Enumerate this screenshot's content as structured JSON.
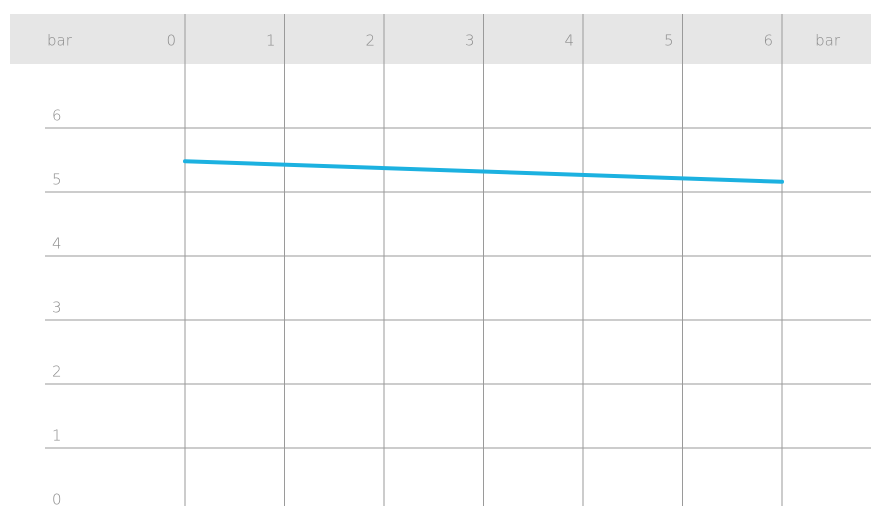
{
  "chart_data": {
    "type": "line",
    "ylabel": "bar",
    "xlabel": "bar",
    "x": [
      0,
      6
    ],
    "series": [
      {
        "name": null,
        "color": "#1cb1e0",
        "values": [
          5.48,
          5.16
        ]
      }
    ],
    "xlim": [
      0,
      6
    ],
    "xticks": [
      0,
      1,
      2,
      3,
      4,
      5,
      6
    ],
    "ylim": [
      0,
      6
    ],
    "yticks": [
      0,
      1,
      2,
      3,
      4,
      5,
      6
    ],
    "grid": true
  }
}
